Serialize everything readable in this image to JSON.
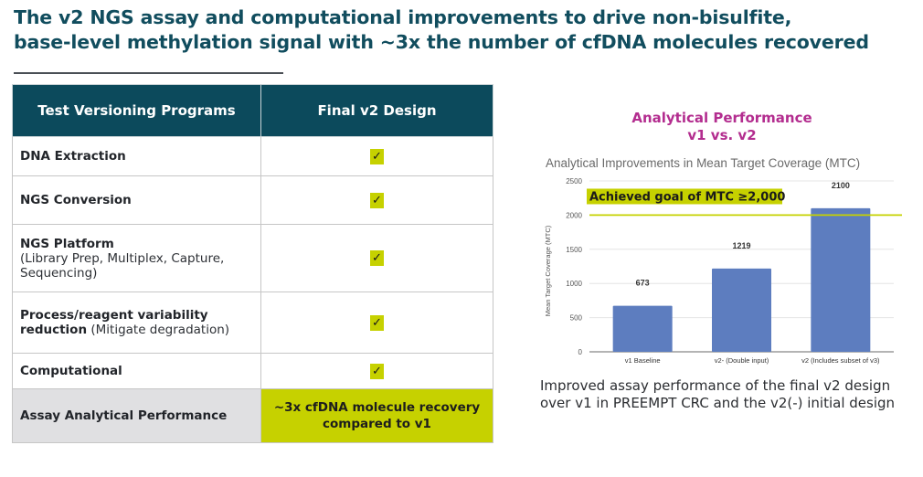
{
  "slide": {
    "title_line1": "The v2 NGS assay and computational improvements to drive non-bisulfite,",
    "title_line2": "base-level methylation signal with ~3x the number of cfDNA molecules recovered"
  },
  "table": {
    "headers": [
      "Test Versioning Programs",
      "Final v2 Design"
    ],
    "rows": [
      {
        "program": "DNA Extraction",
        "detail": "",
        "status": "✓"
      },
      {
        "program": "NGS Conversion",
        "detail": "",
        "status": "✓"
      },
      {
        "program": "NGS Platform",
        "detail": "(Library Prep, Multiplex, Capture, Sequencing)",
        "status": "✓"
      },
      {
        "program": "Process/reagent variability reduction",
        "detail": "(Mitigate degradation)",
        "status": "✓"
      },
      {
        "program": "Computational",
        "detail": "",
        "status": "✓"
      }
    ],
    "summary": {
      "label": "Assay Analytical Performance",
      "value_line1": "~3x cfDNA molecule recovery",
      "value_line2": "compared to v1"
    }
  },
  "chart_panel": {
    "heading_line1": "Analytical Performance",
    "heading_line2": "v1 vs. v2",
    "caption_line1": "Improved assay performance of the final v2 design",
    "caption_line2": "over v1 in PREEMPT CRC and the v2(-) initial design"
  },
  "colors": {
    "header_teal": "#0c4a5c",
    "accent_lime": "#c6d100",
    "bar_blue": "#5d7dbf",
    "heading_magenta": "#b32d8f",
    "title_teal": "#114d5e"
  },
  "chart_data": {
    "type": "bar",
    "title": "Analytical Improvements in Mean Target Coverage (MTC)",
    "xlabel": "",
    "ylabel": "Mean Target Coverage (MTC)",
    "categories": [
      "v1 Baseline",
      "v2- (Double input)",
      "v2 (Includes subset of v3)"
    ],
    "values": [
      673,
      1219,
      2100
    ],
    "data_labels": [
      "673",
      "1219",
      "2100"
    ],
    "ylim": [
      0,
      2500
    ],
    "yticks": [
      0,
      500,
      1000,
      1500,
      2000,
      2500
    ],
    "grid": true,
    "reference_line": {
      "value": 2000,
      "label": "Achieved goal of MTC ≥2,000"
    }
  }
}
